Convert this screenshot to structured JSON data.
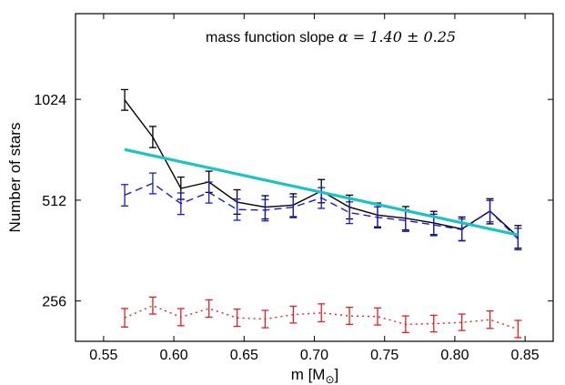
{
  "chart_data": {
    "type": "line",
    "xlabel": "m [M",
    "xlabel_sub": "⊙",
    "xlabel_close": "]",
    "ylabel": "Number of stars",
    "xlim": [
      0.53,
      0.87
    ],
    "ylim_log2": [
      7.6,
      10.85
    ],
    "y_scale": "log2",
    "xticks": [
      0.55,
      0.6,
      0.65,
      0.7,
      0.75,
      0.8,
      0.85
    ],
    "xtick_labels": [
      "0.55",
      "0.60",
      "0.65",
      "0.70",
      "0.75",
      "0.80",
      "0.85"
    ],
    "yticks": [
      256,
      512,
      1024
    ],
    "ytick_labels": [
      "256",
      "512",
      "1024"
    ],
    "annotation": {
      "prefix": "mass function slope ",
      "math": "α = 1.40 ± 0.25"
    },
    "grid": false,
    "series": [
      {
        "style": "solid",
        "color": "#000000",
        "x": [
          0.565,
          0.585,
          0.605,
          0.625,
          0.645,
          0.665,
          0.685,
          0.705,
          0.725,
          0.745,
          0.765,
          0.785,
          0.805,
          0.825,
          0.845
        ],
        "y": [
          1020,
          790,
          555,
          580,
          505,
          488,
          495,
          545,
          488,
          462,
          452,
          438,
          420,
          475,
          398
        ],
        "err_low": [
          70,
          55,
          40,
          40,
          40,
          38,
          38,
          42,
          38,
          36,
          35,
          34,
          33,
          40,
          30
        ],
        "err_high": [
          75,
          60,
          45,
          45,
          45,
          40,
          40,
          45,
          42,
          40,
          38,
          36,
          36,
          42,
          32
        ]
      },
      {
        "style": "dashed",
        "color": "#1a1acd",
        "x": [
          0.565,
          0.585,
          0.605,
          0.625,
          0.645,
          0.665,
          0.685,
          0.705,
          0.725,
          0.745,
          0.765,
          0.785,
          0.805,
          0.825,
          0.845
        ],
        "y": [
          530,
          575,
          500,
          540,
          480,
          478,
          488,
          520,
          470,
          455,
          445,
          432,
          418,
          475,
          392
        ],
        "err_low": [
          38,
          40,
          36,
          38,
          34,
          34,
          34,
          36,
          34,
          32,
          32,
          31,
          30,
          34,
          28
        ],
        "err_high": [
          40,
          42,
          38,
          40,
          36,
          36,
          36,
          38,
          36,
          34,
          34,
          33,
          32,
          36,
          30
        ]
      },
      {
        "style": "dotted",
        "color": "#e02020",
        "x": [
          0.565,
          0.585,
          0.605,
          0.625,
          0.645,
          0.665,
          0.685,
          0.705,
          0.725,
          0.745,
          0.765,
          0.785,
          0.805,
          0.825,
          0.845
        ],
        "y": [
          228,
          248,
          229,
          243,
          228,
          226,
          233,
          236,
          231,
          230,
          218,
          219,
          221,
          225,
          211
        ],
        "err_low": [
          14,
          14,
          13,
          14,
          13,
          13,
          13,
          14,
          13,
          13,
          12,
          12,
          12,
          13,
          12
        ],
        "err_high": [
          15,
          15,
          14,
          15,
          14,
          14,
          14,
          15,
          14,
          14,
          13,
          13,
          13,
          14,
          13
        ]
      },
      {
        "style": "fit",
        "color": "#1cc3c3",
        "x": [
          0.565,
          0.845
        ],
        "y": [
          725,
          403
        ]
      }
    ]
  }
}
